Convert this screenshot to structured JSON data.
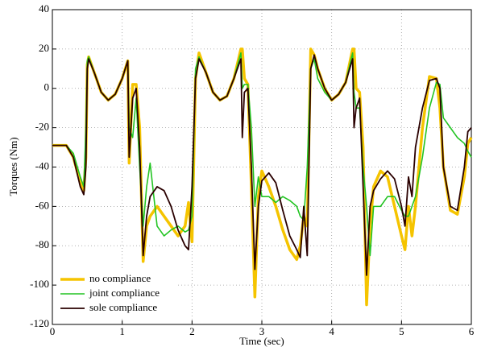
{
  "chart_data": {
    "type": "line",
    "xlabel": "Time (sec)",
    "ylabel": "Torques (Nm)",
    "x": [
      0,
      0.2,
      0.3,
      0.4,
      0.45,
      0.48,
      0.5,
      0.52,
      0.6,
      0.7,
      0.8,
      0.9,
      1.0,
      1.08,
      1.1,
      1.15,
      1.2,
      1.25,
      1.3,
      1.35,
      1.4,
      1.5,
      1.6,
      1.7,
      1.8,
      1.9,
      1.95,
      2.0,
      2.05,
      2.1,
      2.2,
      2.3,
      2.4,
      2.5,
      2.6,
      2.7,
      2.72,
      2.75,
      2.8,
      2.85,
      2.9,
      2.95,
      3.0,
      3.1,
      3.2,
      3.3,
      3.4,
      3.5,
      3.55,
      3.6,
      3.65,
      3.7,
      3.75,
      3.8,
      3.9,
      4.0,
      4.1,
      4.2,
      4.3,
      4.32,
      4.35,
      4.4,
      4.45,
      4.5,
      4.55,
      4.6,
      4.7,
      4.8,
      4.9,
      5.0,
      5.05,
      5.1,
      5.15,
      5.2,
      5.3,
      5.4,
      5.5,
      5.55,
      5.6,
      5.7,
      5.8,
      5.9,
      5.95,
      6.0
    ],
    "series": [
      {
        "name": "no compliance",
        "color": "#f5c400",
        "values": [
          -29,
          -29,
          -35,
          -48,
          -52,
          -35,
          12,
          16,
          8,
          -2,
          -6,
          -3,
          5,
          14,
          -38,
          2,
          2,
          -20,
          -88,
          -70,
          -65,
          -60,
          -65,
          -70,
          -75,
          -70,
          -58,
          -78,
          5,
          18,
          8,
          -2,
          -6,
          -4,
          5,
          20,
          20,
          5,
          2,
          -50,
          -106,
          -55,
          -42,
          -50,
          -60,
          -72,
          -82,
          -87,
          -80,
          -65,
          -70,
          20,
          17,
          10,
          0,
          -6,
          -3,
          3,
          20,
          20,
          0,
          -2,
          -30,
          -110,
          -70,
          -50,
          -42,
          -45,
          -60,
          -75,
          -82,
          -60,
          -75,
          -60,
          -20,
          6,
          5,
          -10,
          -40,
          -62,
          -64,
          -45,
          -28,
          -25
        ]
      },
      {
        "name": "joint compliance",
        "color": "#22c422",
        "values": [
          -29,
          -29,
          -33,
          -45,
          -50,
          -20,
          14,
          16,
          8,
          -2,
          -6,
          -3,
          5,
          14,
          -20,
          -25,
          -5,
          -40,
          -70,
          -50,
          -38,
          -70,
          -75,
          -72,
          -70,
          -73,
          -72,
          -65,
          10,
          16,
          8,
          -2,
          -6,
          -4,
          5,
          18,
          0,
          2,
          2,
          -20,
          -60,
          -45,
          -55,
          -55,
          -58,
          -55,
          -57,
          -60,
          -65,
          -67,
          -40,
          10,
          15,
          5,
          -2,
          -6,
          -3,
          3,
          18,
          -2,
          -10,
          -10,
          -40,
          -60,
          -85,
          -60,
          -60,
          -55,
          -55,
          -62,
          -65,
          -65,
          -60,
          -55,
          -35,
          -10,
          3,
          2,
          -15,
          -20,
          -25,
          -28,
          -32,
          -35
        ]
      },
      {
        "name": "sole compliance",
        "color": "#2a0000",
        "values": [
          -29,
          -29,
          -35,
          -50,
          -54,
          -40,
          10,
          15,
          8,
          -2,
          -6,
          -3,
          5,
          14,
          -35,
          -5,
          0,
          -30,
          -85,
          -65,
          -55,
          -50,
          -52,
          -60,
          -72,
          -80,
          -82,
          -50,
          5,
          15,
          8,
          -2,
          -6,
          -4,
          5,
          15,
          -25,
          -2,
          0,
          -40,
          -92,
          -60,
          -47,
          -43,
          -48,
          -62,
          -75,
          -82,
          -86,
          -60,
          -85,
          10,
          17,
          10,
          0,
          -6,
          -3,
          3,
          15,
          -20,
          -10,
          -5,
          -50,
          -95,
          -60,
          -52,
          -46,
          -42,
          -46,
          -60,
          -70,
          -45,
          -55,
          -30,
          -10,
          4,
          5,
          0,
          -40,
          -60,
          -62,
          -40,
          -22,
          -20
        ]
      }
    ],
    "xlim": [
      0,
      6
    ],
    "xticks": [
      0,
      1,
      2,
      3,
      4,
      5,
      6
    ],
    "ylim": [
      -120,
      40
    ],
    "yticks": [
      -120,
      -100,
      -80,
      -60,
      -40,
      -20,
      0,
      20,
      40
    ],
    "grid": true,
    "legend": "lower left"
  }
}
